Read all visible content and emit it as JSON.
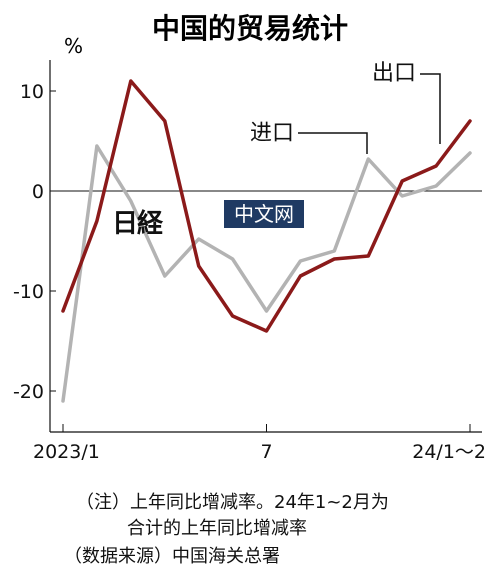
{
  "chart_data": {
    "type": "line",
    "title": "中国的贸易统计",
    "ylabel": "%",
    "ylim": [
      -24,
      14
    ],
    "yticks": [
      10,
      0,
      -10,
      -20
    ],
    "x_tick_labels": [
      {
        "index": 0,
        "label": "2023/1"
      },
      {
        "index": 6,
        "label": "7"
      },
      {
        "index": 12,
        "label": "24/1～2"
      }
    ],
    "n_points": 13,
    "series": [
      {
        "name": "出口",
        "color": "#8b1a1a",
        "values": [
          -12.0,
          -3.0,
          11.0,
          7.0,
          -7.5,
          -12.5,
          -14.0,
          -8.5,
          -6.8,
          -6.5,
          1.0,
          2.5,
          7.0
        ]
      },
      {
        "name": "进口",
        "color": "#b3b3b3",
        "values": [
          -21.0,
          4.5,
          -1.0,
          -8.5,
          -4.8,
          -6.8,
          -12.0,
          -7.0,
          -6.0,
          3.2,
          -0.5,
          0.5,
          3.8
        ]
      }
    ],
    "grid": false,
    "zero_line": true
  },
  "watermark": {
    "black_text": "日経",
    "badge_text": "中文网"
  },
  "notes": {
    "line1": "（注）上年同比增减率。24年1~2月为",
    "line2": "合计的上年同比增减率",
    "line3": "（数据来源）中国海关总署"
  }
}
